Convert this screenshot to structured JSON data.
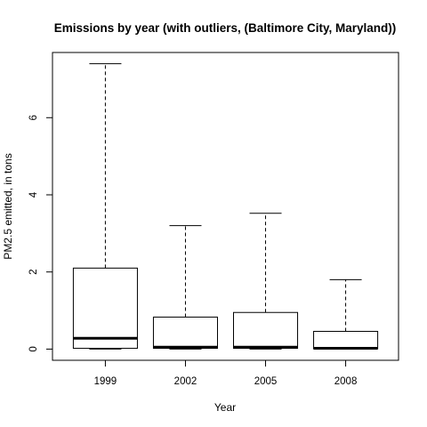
{
  "chart_data": {
    "type": "boxplot",
    "title": "Emissions by year (with outliers, (Baltimore City, Maryland))",
    "xlabel": "Year",
    "ylabel": "PM2.5 emitted, in tons",
    "categories": [
      "1999",
      "2002",
      "2005",
      "2008"
    ],
    "boxes": [
      {
        "category": "1999",
        "whisker_low": 0.0,
        "q1": 0.02,
        "median": 0.28,
        "q3": 2.1,
        "whisker_high": 7.4
      },
      {
        "category": "2002",
        "whisker_low": 0.0,
        "q1": 0.02,
        "median": 0.05,
        "q3": 0.83,
        "whisker_high": 3.2
      },
      {
        "category": "2005",
        "whisker_low": 0.0,
        "q1": 0.02,
        "median": 0.05,
        "q3": 0.95,
        "whisker_high": 3.52
      },
      {
        "category": "2008",
        "whisker_low": 0.0,
        "q1": 0.01,
        "median": 0.02,
        "q3": 0.46,
        "whisker_high": 1.8
      }
    ],
    "yticks": [
      0,
      2,
      4,
      6
    ],
    "ylim": [
      -0.29,
      7.69
    ],
    "grid": false,
    "legend": "none"
  }
}
